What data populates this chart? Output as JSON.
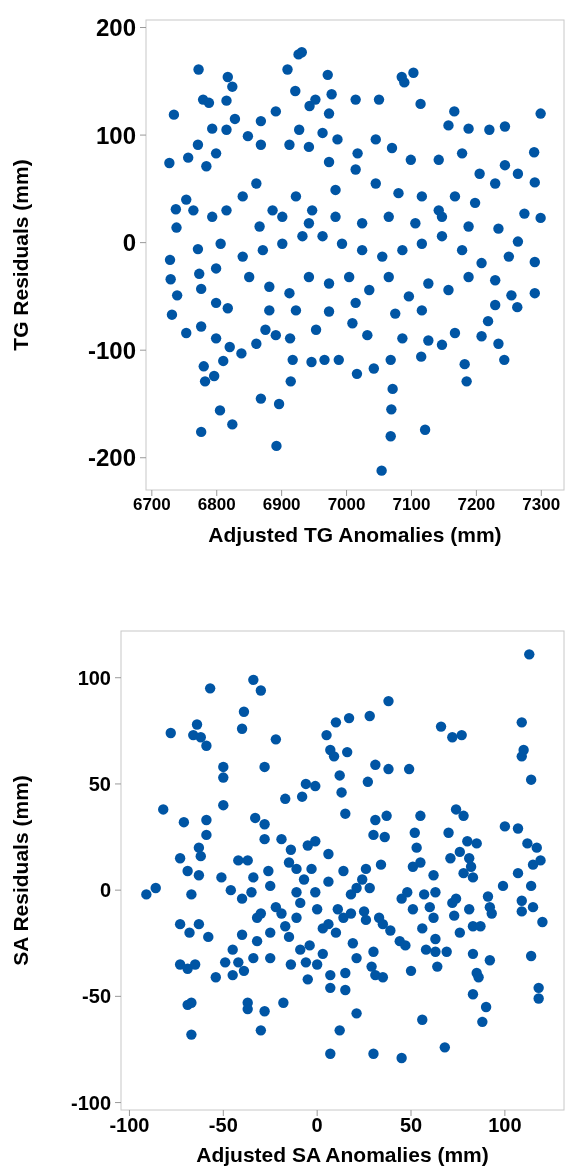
{
  "chart_data": [
    {
      "type": "scatter",
      "xlabel": "Adjusted TG Anomalies (mm)",
      "ylabel": "TG Residuals (mm)",
      "color": "#0055a4",
      "marker": "circle",
      "xlim": [
        6691,
        7335
      ],
      "ylim": [
        -230,
        207
      ],
      "xticks": [
        6700,
        6800,
        6900,
        7000,
        7100,
        7200,
        7300
      ],
      "yticks": [
        -200,
        -100,
        0,
        100,
        200
      ],
      "x": [
        6772,
        6734,
        6817,
        6824,
        6909,
        6926,
        6931,
        6921,
        6971,
        6977,
        6973,
        7014,
        7050,
        7085,
        7089,
        7103,
        7114,
        7166,
        7299,
        7289,
        7157,
        7188,
        7220,
        7244,
        6727,
        6756,
        6779,
        6788,
        6815,
        6828,
        6793,
        6815,
        6891,
        6868,
        6943,
        6952,
        6927,
        6963,
        6986,
        6728,
        6729,
        6731,
        6753,
        6739,
        6776,
        6782,
        6780,
        6796,
        6805,
        6824,
        6810,
        6868,
        6892,
        6896,
        6914,
        6917,
        6946,
        6966,
        6988,
        7016,
        7042,
        7054,
        7068,
        7069,
        7071,
        7068,
        7121,
        7115,
        7182,
        7185,
        7243,
        7234,
        7208,
        7263,
        7290,
        7264,
        7299,
        7290,
        7274,
        7290,
        7264,
        7244,
        7229,
        7205,
        7178,
        7142,
        7099,
        7070,
        7045,
        7017,
        6973,
        6942,
        6912,
        6868,
        6848,
        6799,
        6771,
        6784,
        6753,
        6737,
        6738,
        6771,
        6773,
        6799,
        6776,
        6799,
        6817,
        6776,
        6799,
        6820,
        6838,
        6861,
        6875,
        6891,
        6913,
        6953,
        6973,
        7009,
        7032,
        7086,
        7126,
        7147,
        7167,
        7218,
        7229,
        7254,
        7229,
        7250,
        7234,
        7198,
        7167,
        7142,
        7116,
        7080,
        7045,
        7014,
        6983,
        6947,
        6922,
        6886,
        6861,
        6840,
        6815,
        6793,
        6764,
        6806,
        6840,
        6871,
        6901,
        6932,
        6963,
        6993,
        7024,
        7055,
        7086,
        7116,
        7147,
        7178,
        7208,
        6850,
        6881,
        6912,
        6942,
        6973,
        7004,
        7035,
        7065,
        7096,
        7126,
        7157,
        7188,
        6866,
        6901,
        6942,
        6983,
        7024,
        7065,
        7106,
        7147,
        7188,
        6922,
        7014,
        7116,
        6881,
        7075
      ],
      "values": [
        161,
        119,
        154,
        145,
        161,
        175,
        177,
        141,
        156,
        138,
        120,
        133,
        133,
        154,
        149,
        158,
        129,
        122,
        120,
        84,
        109,
        106,
        105,
        108,
        74,
        79,
        133,
        130,
        132,
        115,
        106,
        105,
        122,
        113,
        127,
        133,
        105,
        102,
        96,
        -16,
        -34,
        -67,
        -84,
        -49,
        -176,
        -129,
        -115,
        -124,
        -156,
        -169,
        -110,
        -145,
        -189,
        -150,
        -129,
        -109,
        -111,
        -109,
        -109,
        -122,
        -117,
        -212,
        -180,
        -155,
        -136,
        -109,
        -174,
        -106,
        -113,
        -129,
        -109,
        -94,
        -87,
        -60,
        -47,
        1,
        23,
        -18,
        27,
        56,
        64,
        72,
        55,
        64,
        83,
        77,
        77,
        88,
        96,
        83,
        75,
        89,
        91,
        91,
        99,
        83,
        91,
        71,
        40,
        31,
        14,
        -6,
        -29,
        -24,
        -43,
        -56,
        -61,
        -78,
        -89,
        -97,
        -103,
        -94,
        -81,
        -86,
        -89,
        -81,
        -64,
        -75,
        -86,
        -89,
        -91,
        -95,
        -84,
        -73,
        -58,
        -49,
        -35,
        -13,
        13,
        37,
        43,
        30,
        43,
        46,
        55,
        68,
        49,
        30,
        43,
        30,
        55,
        43,
        30,
        24,
        30,
        -1,
        -13,
        -7,
        -1,
        6,
        6,
        -1,
        -7,
        -13,
        -7,
        -1,
        6,
        -7,
        -19,
        -32,
        -41,
        -47,
        -32,
        -38,
        -32,
        -44,
        -32,
        -50,
        -38,
        -44,
        -32,
        15,
        24,
        18,
        24,
        18,
        24,
        18,
        24,
        15,
        -63,
        -56,
        -63,
        -63,
        -66
      ]
    },
    {
      "type": "scatter",
      "xlabel": "Adjusted SA Anomalies (mm)",
      "ylabel": "SA Residuals (mm)",
      "color": "#0055a4",
      "marker": "circle",
      "xlim": [
        -104.5,
        131.5
      ],
      "ylim": [
        -103.5,
        122
      ],
      "xticks": [
        -100,
        -50,
        0,
        50,
        100
      ],
      "yticks": [
        -100,
        -50,
        0,
        50,
        100
      ],
      "x": [
        -91,
        -86,
        -82,
        -78,
        -73,
        -71,
        -69,
        -67,
        -73,
        -68,
        -73,
        -69,
        -65,
        -69,
        -67,
        -67,
        -66,
        -64,
        -62,
        -59,
        -57,
        -63,
        -62,
        -63,
        -59,
        -59,
        -63,
        -58,
        -54,
        -50,
        -50,
        -50,
        -51,
        -46,
        -49,
        -45,
        -45,
        -42,
        -40,
        -40,
        -39,
        -42,
        -37,
        -40,
        -39,
        -37,
        -37,
        -34,
        -30,
        -33,
        -28,
        -28,
        -34,
        -35,
        -32,
        -30,
        -32,
        -34,
        -30,
        -28,
        -28,
        -26,
        -25,
        -25,
        -25,
        -22,
        -22,
        -19,
        -19,
        -17,
        -18,
        -17,
        -15,
        -14,
        -15,
        -14,
        -11,
        -11,
        -11,
        -9,
        -8,
        -7,
        -9,
        -6,
        -4,
        -5,
        -6,
        -1,
        -5,
        -1,
        -1,
        -3,
        0,
        0,
        3,
        3,
        5,
        7,
        9,
        6,
        6,
        6,
        7,
        7,
        7,
        10,
        12,
        13,
        11,
        10,
        14,
        14,
        12,
        15,
        15,
        16,
        17,
        15,
        18,
        18,
        19,
        21,
        21,
        21,
        24,
        25,
        26,
        26,
        28,
        27,
        28,
        30,
        31,
        31,
        30,
        29,
        31,
        30,
        33,
        34,
        35,
        37,
        36,
        38,
        38,
        35,
        39,
        44,
        45,
        45,
        47,
        48,
        49,
        50,
        51,
        51,
        52,
        53,
        55,
        55,
        56,
        57,
        56,
        58,
        60,
        62,
        62,
        63,
        63,
        64,
        63,
        66,
        68,
        69,
        70,
        71,
        72,
        72,
        73,
        74,
        74,
        76,
        77,
        76,
        78,
        78,
        80,
        81,
        81,
        82,
        83,
        83,
        83,
        83,
        85,
        85,
        86,
        87,
        88,
        90,
        91,
        92,
        93,
        92,
        99,
        100,
        107,
        109,
        107,
        109,
        109,
        109,
        110,
        112,
        113,
        114,
        114,
        114,
        115,
        115,
        117,
        118,
        118,
        119,
        120
      ],
      "values": [
        -2,
        1,
        38,
        74,
        15,
        32,
        9,
        -2,
        -16,
        -20,
        -35,
        -37,
        -35,
        -54,
        -53,
        -68,
        73,
        78,
        72,
        68,
        95,
        20,
        16,
        7,
        33,
        26,
        -16,
        -22,
        -41,
        53,
        58,
        40,
        6,
        0,
        -34,
        -40,
        -28,
        -34,
        -4,
        -21,
        -38,
        14,
        14,
        76,
        84,
        -53,
        -56,
        99,
        94,
        34,
        31,
        24,
        6,
        -1,
        -13,
        -11,
        -24,
        -32,
        -66,
        -57,
        58,
        9,
        2,
        -20,
        -32,
        71,
        -8,
        24,
        -11,
        43,
        -53,
        -17,
        13,
        19,
        -22,
        -35,
        10,
        -13,
        -1,
        -6,
        44,
        5,
        -28,
        50,
        -26,
        -42,
        -34,
        49,
        21,
        23,
        -1,
        10,
        -9,
        -35,
        -30,
        -18,
        73,
        66,
        63,
        17,
        4,
        -16,
        -40,
        -46,
        -77,
        79,
        54,
        46,
        -9,
        -20,
        9,
        -13,
        -66,
        -39,
        -47,
        65,
        81,
        36,
        -2,
        -11,
        -25,
        1,
        -58,
        -32,
        5,
        -10,
        10,
        -14,
        82,
        51,
        1,
        26,
        59,
        33,
        -29,
        -36,
        -40,
        -77,
        -13,
        12,
        -16,
        35,
        25,
        89,
        57,
        -41,
        -19,
        -24,
        -4,
        -79,
        -26,
        -1,
        57,
        -38,
        -9,
        11,
        27,
        20,
        13,
        35,
        -18,
        -2,
        -61,
        -28,
        -8,
        -13,
        7,
        -1,
        -23,
        -36,
        -29,
        77,
        -74,
        -29,
        27,
        15,
        72,
        -6,
        -12,
        38,
        -4,
        -20,
        73,
        18,
        35,
        8,
        23,
        -9,
        15,
        11,
        6,
        -30,
        -17,
        -49,
        -39,
        22,
        -41,
        -17,
        -62,
        -55,
        -3,
        -8,
        -11,
        -33,
        2,
        30,
        29,
        79,
        8,
        -5,
        -10,
        63,
        66,
        22,
        111,
        2,
        52,
        -31,
        12,
        -8,
        20,
        -46,
        -51,
        14,
        -15
      ]
    }
  ]
}
